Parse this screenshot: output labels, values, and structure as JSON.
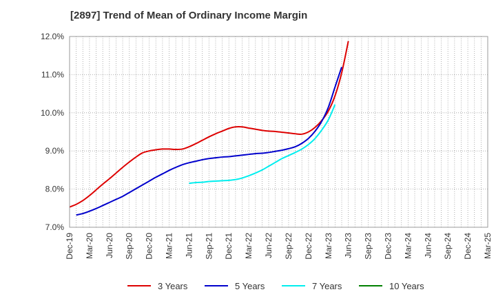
{
  "chart_data": {
    "type": "line",
    "title": "[2897]  Trend of Mean of Ordinary Income Margin",
    "xlabel": "",
    "ylabel": "",
    "ylim": [
      7.0,
      12.0
    ],
    "y_ticks": [
      "7.0%",
      "8.0%",
      "9.0%",
      "10.0%",
      "11.0%",
      "12.0%"
    ],
    "x_tick_labels": [
      "Dec-19",
      "Mar-20",
      "Jun-20",
      "Sep-20",
      "Dec-20",
      "Mar-21",
      "Jun-21",
      "Sep-21",
      "Dec-21",
      "Mar-22",
      "Jun-22",
      "Sep-22",
      "Dec-22",
      "Mar-23",
      "Jun-23",
      "Sep-23",
      "Dec-23",
      "Mar-24",
      "Jun-24",
      "Sep-24",
      "Dec-24",
      "Mar-25"
    ],
    "grid": true,
    "legend_position": "bottom",
    "series": [
      {
        "name": "3 Years",
        "color": "#dd0000",
        "start_index": 0,
        "values": [
          7.53,
          7.6,
          7.7,
          7.83,
          7.98,
          8.13,
          8.27,
          8.42,
          8.57,
          8.71,
          8.84,
          8.95,
          9.0,
          9.03,
          9.05,
          9.05,
          9.04,
          9.05,
          9.11,
          9.19,
          9.28,
          9.37,
          9.45,
          9.52,
          9.59,
          9.63,
          9.63,
          9.6,
          9.57,
          9.54,
          9.52,
          9.51,
          9.49,
          9.47,
          9.45,
          9.44,
          9.5,
          9.62,
          9.8,
          10.05,
          10.45,
          11.05,
          11.88
        ]
      },
      {
        "name": "5 Years",
        "color": "#0000cc",
        "start_index": 1,
        "values": [
          7.32,
          7.36,
          7.42,
          7.49,
          7.57,
          7.65,
          7.73,
          7.81,
          7.91,
          8.01,
          8.11,
          8.21,
          8.31,
          8.4,
          8.49,
          8.57,
          8.64,
          8.69,
          8.73,
          8.77,
          8.8,
          8.82,
          8.84,
          8.85,
          8.87,
          8.89,
          8.91,
          8.93,
          8.94,
          8.96,
          8.99,
          9.02,
          9.06,
          9.11,
          9.2,
          9.33,
          9.52,
          9.78,
          10.15,
          10.68,
          11.2
        ]
      },
      {
        "name": "7 Years",
        "color": "#00eeee",
        "start_index": 18,
        "values": [
          8.15,
          8.17,
          8.18,
          8.2,
          8.21,
          8.22,
          8.23,
          8.25,
          8.29,
          8.35,
          8.42,
          8.5,
          8.6,
          8.7,
          8.8,
          8.88,
          8.96,
          9.05,
          9.17,
          9.33,
          9.55,
          9.82,
          10.22
        ]
      },
      {
        "name": "10 Years",
        "color": "#008000",
        "start_index": 0,
        "values": []
      }
    ]
  }
}
